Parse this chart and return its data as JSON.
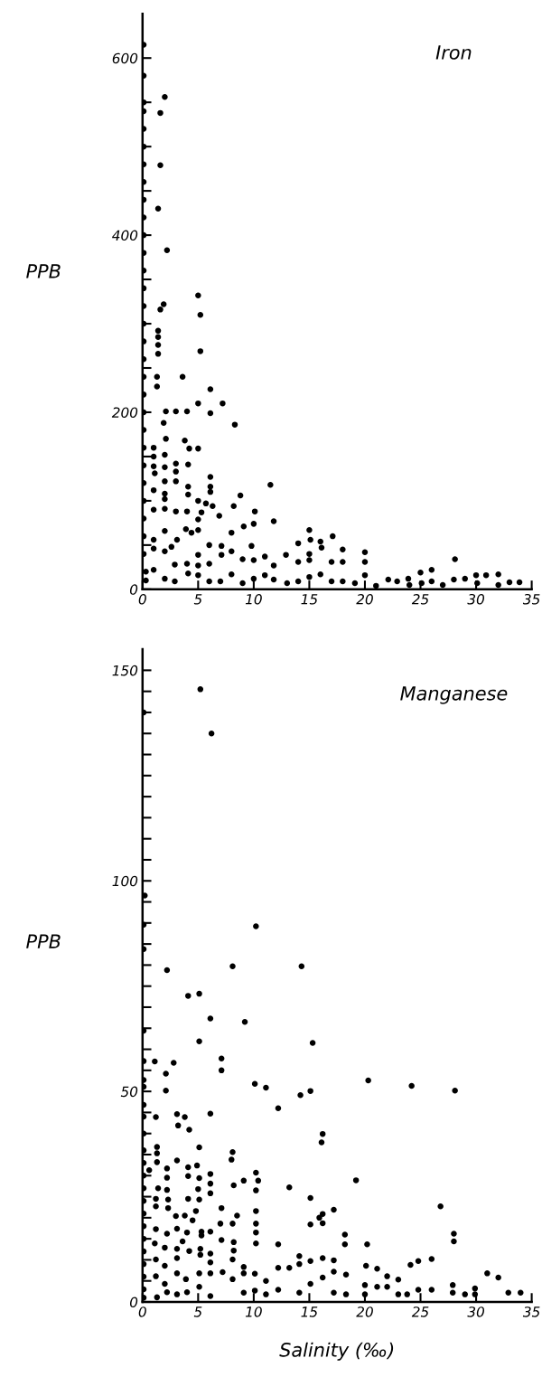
{
  "chart_data": [
    {
      "type": "scatter",
      "title": "Iron",
      "ylabel": "PPB",
      "marker": "circle",
      "grid": false,
      "legend": false,
      "xlim": [
        0,
        35
      ],
      "xticks": [
        0,
        5,
        10,
        15,
        20,
        25,
        30,
        35
      ],
      "ylim": [
        0,
        650
      ],
      "yticks": [
        0,
        {
          "value": 50,
          "label": null
        },
        {
          "value": 100,
          "label": null
        },
        {
          "value": 150,
          "label": null
        },
        200,
        {
          "value": 250,
          "label": null
        },
        {
          "value": 300,
          "label": null
        },
        {
          "value": 350,
          "label": null
        },
        400,
        {
          "value": 450,
          "label": null
        },
        {
          "value": 500,
          "label": null
        },
        {
          "value": 550,
          "label": null
        },
        600
      ],
      "series": [
        {
          "color": "#000000",
          "x": [
            0.1,
            0.1,
            0.1,
            0.1,
            0.1,
            0.1,
            0.1,
            0.1,
            0.1,
            0.1,
            0.1,
            0.1,
            0.1,
            0.1,
            0.1,
            0.1,
            0.1,
            0.1,
            0.1,
            0.1,
            0.1,
            0.1,
            0.1,
            0.1,
            0.1,
            0.1,
            0.1,
            0.1,
            0.1,
            0.3,
            0.3,
            2.0,
            1.6,
            1.6,
            1.4,
            2.2,
            5.0,
            1.9,
            1.6,
            5.2,
            1.4,
            1.4,
            1.4,
            1.4,
            5.2,
            1.3,
            3.6,
            1.3,
            6.1,
            7.2,
            5.0,
            6.1,
            2.1,
            3.0,
            4.0,
            8.3,
            1.9,
            2.1,
            3.8,
            4.2,
            5.0,
            1.0,
            1.0,
            2.0,
            1.0,
            2.0,
            3.0,
            4.1,
            3.0,
            3.0,
            1.1,
            2.0,
            6.1,
            6.1,
            6.1,
            4.1,
            4.1,
            1.0,
            11.5,
            2.0,
            2.0,
            5.0,
            5.7,
            6.3,
            8.8,
            2.0,
            1.0,
            3.0,
            4.0,
            8.2,
            6.9,
            10.1,
            5.3,
            11.8,
            5.0,
            10.0,
            9.1,
            8.0,
            3.9,
            4.4,
            5.0,
            2.0,
            3.1,
            2.6,
            2.0,
            1.0,
            1.0,
            15.0,
            15.1,
            17.1,
            14.0,
            16.0,
            16.1,
            18.0,
            20.0,
            12.9,
            11.0,
            15.0,
            7.1,
            6.0,
            8.0,
            9.8,
            5.0,
            2.9,
            4.0,
            5.0,
            6.0,
            7.1,
            9.0,
            10.0,
            11.8,
            14.0,
            15.0,
            17.0,
            18.0,
            20.0,
            28.1,
            1.0,
            2.0,
            2.9,
            4.1,
            5.0,
            6.0,
            7.0,
            8.0,
            9.0,
            10.0,
            11.0,
            11.8,
            13.0,
            14.0,
            15.0,
            16.0,
            17.0,
            18.0,
            19.1,
            20.0,
            21.0,
            22.1,
            22.9,
            23.9,
            24.0,
            25.0,
            25.1,
            26.0,
            26.0,
            27.0,
            28.0,
            29.0,
            30.0,
            30.1,
            30.9,
            32.0,
            32.0,
            33.0,
            33.9
          ],
          "values": [
            615,
            580,
            550,
            540,
            520,
            500,
            480,
            460,
            440,
            420,
            400,
            380,
            360,
            340,
            320,
            300,
            280,
            260,
            240,
            220,
            200,
            180,
            160,
            140,
            120,
            100,
            80,
            60,
            40,
            20,
            10,
            556,
            538,
            479,
            430,
            383,
            332,
            322,
            316,
            310,
            292,
            285,
            276,
            266,
            269,
            240,
            240,
            229,
            226,
            210,
            210,
            199,
            201,
            201,
            201,
            186,
            188,
            170,
            168,
            159,
            159,
            160,
            150,
            152,
            139,
            138,
            142,
            141,
            133,
            122,
            131,
            122,
            127,
            116,
            110,
            116,
            107,
            112,
            118,
            108,
            102,
            100,
            97,
            94,
            106,
            91,
            90,
            88,
            88,
            94,
            83,
            88,
            87,
            77,
            79,
            74,
            71,
            64,
            68,
            64,
            67,
            66,
            56,
            48,
            43,
            56,
            46,
            67,
            56,
            60,
            52,
            54,
            47,
            45,
            42,
            39,
            37,
            40,
            49,
            50,
            43,
            49,
            39,
            28,
            29,
            27,
            29,
            39,
            34,
            33,
            27,
            31,
            33,
            31,
            31,
            31,
            34,
            22,
            12,
            9,
            18,
            16,
            9,
            9,
            17,
            7,
            12,
            16,
            11,
            7,
            9,
            14,
            17,
            9,
            9,
            7,
            16,
            4,
            11,
            9,
            12,
            5,
            19,
            7,
            22,
            9,
            5,
            11,
            12,
            16,
            7,
            16,
            17,
            5,
            8,
            8
          ]
        }
      ]
    },
    {
      "type": "scatter",
      "title": "Manganese",
      "ylabel": "PPB",
      "xlabel": "Salinity (‰)",
      "marker": "circle",
      "grid": false,
      "legend": false,
      "xlim": [
        0,
        35
      ],
      "xticks": [
        0,
        5,
        10,
        15,
        20,
        25,
        30,
        35
      ],
      "ylim": [
        0,
        155
      ],
      "yticks": [
        0,
        {
          "value": 5,
          "label": null
        },
        {
          "value": 10,
          "label": null
        },
        {
          "value": 15,
          "label": null
        },
        {
          "value": 20,
          "label": null
        },
        {
          "value": 25,
          "label": null
        },
        {
          "value": 30,
          "label": null
        },
        {
          "value": 35,
          "label": null
        },
        {
          "value": 40,
          "label": null
        },
        {
          "value": 45,
          "label": null
        },
        50,
        {
          "value": 55,
          "label": null
        },
        {
          "value": 60,
          "label": null
        },
        {
          "value": 65,
          "label": null
        },
        {
          "value": 70,
          "label": null
        },
        {
          "value": 75,
          "label": null
        },
        {
          "value": 80,
          "label": null
        },
        {
          "value": 85,
          "label": null
        },
        {
          "value": 90,
          "label": null
        },
        {
          "value": 95,
          "label": null
        },
        100,
        {
          "value": 105,
          "label": null
        },
        {
          "value": 110,
          "label": null
        },
        {
          "value": 115,
          "label": null
        },
        {
          "value": 120,
          "label": null
        },
        {
          "value": 125,
          "label": null
        },
        {
          "value": 130,
          "label": null
        },
        {
          "value": 135,
          "label": null
        },
        {
          "value": 140,
          "label": null
        },
        {
          "value": 145,
          "label": null
        },
        150
      ],
      "series": [
        {
          "color": "#000000",
          "x": [
            0.1,
            0.2,
            0.1,
            0.1,
            0.1,
            0.1,
            0.1,
            0.1,
            0.1,
            0.1,
            0.1,
            0.1,
            0.1,
            0.1,
            0.1,
            0.1,
            0.1,
            0.1,
            0.1,
            0.1,
            0.1,
            0.1,
            0.1,
            0.1,
            5.2,
            6.2,
            10.2,
            2.2,
            8.1,
            14.3,
            4.1,
            5.1,
            6.1,
            9.2,
            5.1,
            15.3,
            1.1,
            2.8,
            7.1,
            2.1,
            7.1,
            10.1,
            11.1,
            20.3,
            24.2,
            28.1,
            2.1,
            14.2,
            15.1,
            12.2,
            1.2,
            3.1,
            3.8,
            6.1,
            3.2,
            4.2,
            16.2,
            16.1,
            1.3,
            1.3,
            5.1,
            8.1,
            8.0,
            3.1,
            1.3,
            0.6,
            2.2,
            4.1,
            4.9,
            6.1,
            6.1,
            10.2,
            2.2,
            4.1,
            5.1,
            9.1,
            10.4,
            19.2,
            1.4,
            2.2,
            5.0,
            10.2,
            8.2,
            6.1,
            13.2,
            15.1,
            1.2,
            1.2,
            2.3,
            2.3,
            4.1,
            5.1,
            4.8,
            7.1,
            10.2,
            17.2,
            26.8,
            16.2,
            16.2,
            15.9,
            8.5,
            3.0,
            3.8,
            4.5,
            7.0,
            8.1,
            10.2,
            10.2,
            15.1,
            1.2,
            3.1,
            4.0,
            5.3,
            5.3,
            6.1,
            2.2,
            18.2,
            18.2,
            28.0,
            28.0,
            1.1,
            2.0,
            3.6,
            7.1,
            8.2,
            8.2,
            10.2,
            12.2,
            20.2,
            3.1,
            3.1,
            4.2,
            5.2,
            5.2,
            6.1,
            6.1,
            1.2,
            1.2,
            2.0,
            2.0,
            16.2,
            17.2,
            14.1,
            14.1,
            15.1,
            15.1,
            24.1,
            24.8,
            24.8,
            26.0,
            26.0,
            8.1,
            8.1,
            9.1,
            9.1,
            7.2,
            10.1,
            13.2,
            12.2,
            12.2,
            20.1,
            21.1,
            21.1,
            22.0,
            22.0,
            23.0,
            17.2,
            17.2,
            18.3,
            18.3,
            16.2,
            3.1,
            3.1,
            3.9,
            5.1,
            5.1,
            6.1,
            6.1,
            31.0,
            32.0,
            11.1,
            11.1,
            20.0,
            20.0,
            27.9,
            27.9,
            29.0,
            29.9,
            29.9,
            32.9,
            34.0,
            23.8,
            23.0,
            9.1,
            4.0,
            1.3,
            2.2,
            14.1,
            10.1
          ],
          "values": [
            140,
            96.5,
            89.6,
            83.8,
            64.4,
            57.2,
            52.7,
            51.1,
            46.8,
            44,
            40,
            36,
            33,
            30,
            27,
            24,
            21,
            18,
            15,
            12,
            9,
            6,
            3,
            1,
            145.5,
            135,
            89.2,
            78.8,
            79.7,
            79.7,
            72.7,
            73.2,
            67.3,
            66.5,
            61.9,
            61.5,
            57.1,
            56.8,
            57.8,
            54.2,
            55.0,
            51.8,
            50.9,
            52.6,
            51.3,
            50.2,
            50.2,
            49.1,
            50.1,
            46.0,
            43.9,
            44.6,
            43.9,
            44.7,
            41.9,
            40.9,
            39.9,
            37.9,
            36.8,
            35.3,
            36.7,
            35.6,
            33.8,
            33.6,
            33.2,
            31.3,
            31.7,
            32.0,
            32.4,
            30.4,
            28.1,
            30.7,
            29.5,
            29.9,
            29.4,
            28.8,
            28.8,
            28.9,
            27.0,
            26.6,
            26.8,
            26.5,
            27.7,
            25.8,
            27.2,
            24.7,
            24.5,
            22.7,
            24.3,
            22.3,
            24.5,
            24.3,
            21.6,
            22.3,
            21.6,
            21.9,
            22.7,
            20.9,
            18.7,
            20.0,
            20.5,
            20.4,
            20.5,
            19.4,
            18.6,
            18.6,
            18.6,
            16.5,
            18.4,
            17.3,
            17.4,
            16.5,
            16.7,
            15.8,
            16.7,
            16.2,
            16.0,
            13.7,
            16.2,
            14.4,
            13.9,
            12.9,
            14.4,
            14.7,
            14.2,
            12.2,
            13.9,
            13.7,
            13.7,
            12.6,
            10.4,
            12.1,
            12.6,
            11.2,
            11.5,
            9.4,
            10.1,
            6.1,
            8.6,
            4.3,
            10.4,
            9.9,
            10.9,
            9.0,
            9.7,
            4.3,
            8.8,
            9.7,
            2.9,
            10.2,
            2.9,
            10.1,
            5.4,
            8.3,
            6.8,
            7.1,
            6.7,
            8.1,
            8.1,
            2.9,
            8.6,
            7.9,
            3.6,
            6.1,
            3.6,
            5.3,
            7.2,
            2.2,
            6.5,
            1.8,
            5.8,
            6.8,
            1.8,
            5.4,
            6.8,
            3.6,
            6.8,
            1.4,
            6.8,
            5.8,
            5.0,
            1.8,
            4.0,
            1.8,
            4.0,
            2.2,
            1.8,
            3.2,
            1.8,
            2.2,
            2.2,
            1.8,
            1.8,
            2.2,
            2.3,
            1.1,
            2.3,
            2.2,
            2.7
          ]
        }
      ]
    }
  ]
}
